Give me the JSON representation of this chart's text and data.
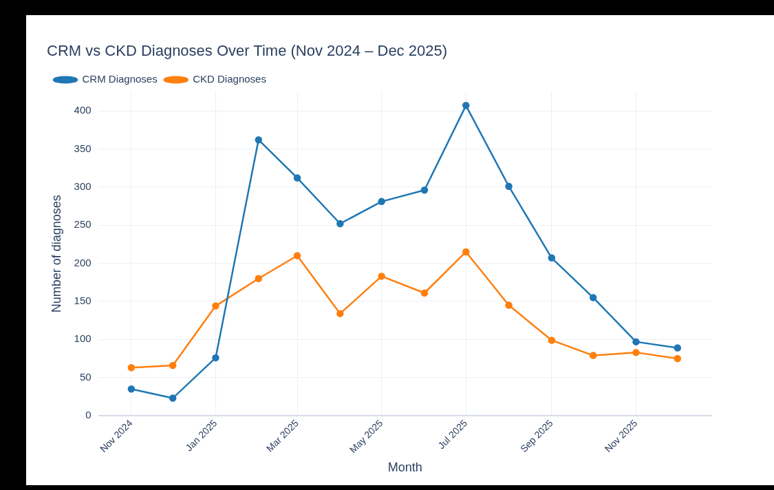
{
  "chart_data": {
    "type": "line",
    "title": "CRM vs CKD Diagnoses Over Time (Nov 2024 – Dec 2025)",
    "xlabel": "Month",
    "ylabel": "Number of diagnoses",
    "x": [
      "2024-11",
      "2024-12",
      "2025-01",
      "2025-02",
      "2025-03",
      "2025-04",
      "2025-05",
      "2025-06",
      "2025-07",
      "2025-08",
      "2025-09",
      "2025-10",
      "2025-11",
      "2025-12"
    ],
    "series": [
      {
        "name": "CRM Diagnoses",
        "color": "#1f77b4",
        "values": [
          35,
          23,
          76,
          362,
          312,
          252,
          281,
          296,
          407,
          301,
          207,
          155,
          97,
          89
        ]
      },
      {
        "name": "CKD Diagnoses",
        "color": "#ff7f0e",
        "values": [
          63,
          66,
          144,
          180,
          210,
          134,
          183,
          161,
          215,
          145,
          99,
          79,
          83,
          75
        ]
      }
    ],
    "xlim": [
      "2024-10-08",
      "2025-12-26"
    ],
    "xticks": [
      {
        "value": "2024-11",
        "label": "Nov 2024"
      },
      {
        "value": "2025-01",
        "label": "Jan 2025"
      },
      {
        "value": "2025-03",
        "label": "Mar 2025"
      },
      {
        "value": "2025-05",
        "label": "May 2025"
      },
      {
        "value": "2025-07",
        "label": "Jul 2025"
      },
      {
        "value": "2025-09",
        "label": "Sep 2025"
      },
      {
        "value": "2025-11",
        "label": "Nov 2025"
      }
    ],
    "ylim": [
      0,
      425
    ],
    "yticks": [
      0,
      50,
      100,
      150,
      200,
      250,
      300,
      350,
      400
    ],
    "grid": true,
    "legend": "top left",
    "marker": "circle",
    "line_style": "solid"
  }
}
